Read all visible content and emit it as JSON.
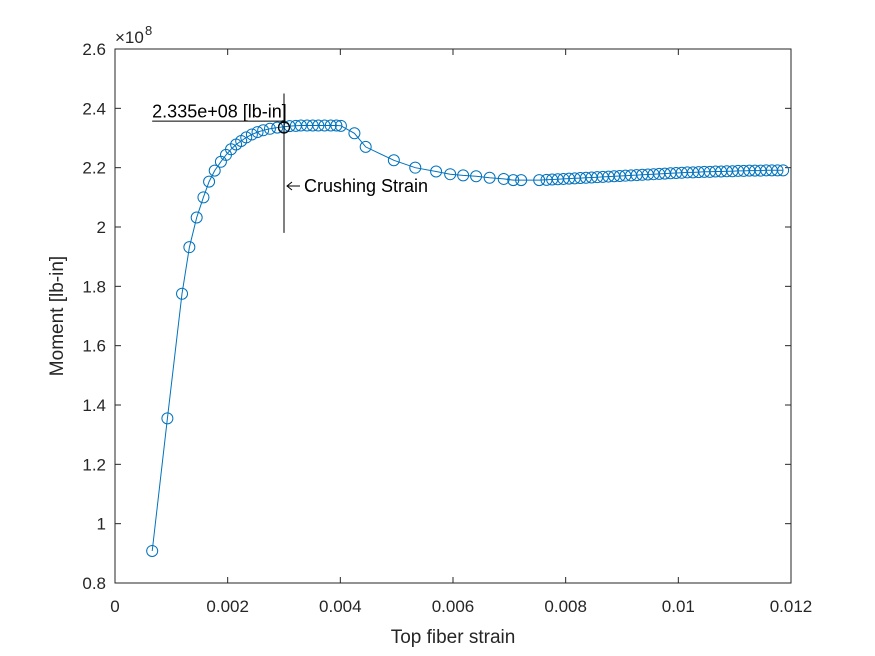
{
  "chart_data": {
    "type": "line",
    "xlabel": "Top fiber strain",
    "ylabel": "Moment [lb-in]",
    "xlim": [
      0,
      0.012
    ],
    "ylim": [
      0.8,
      2.6
    ],
    "y_exponent_label": "×10",
    "y_exponent": "8",
    "x_ticks": [
      0,
      0.002,
      0.004,
      0.006,
      0.008,
      0.01,
      0.012
    ],
    "x_tick_labels": [
      "0",
      "0.002",
      "0.004",
      "0.006",
      "0.008",
      "0.01",
      "0.012"
    ],
    "y_ticks": [
      0.8,
      1.0,
      1.2,
      1.4,
      1.6,
      1.8,
      2.0,
      2.2,
      2.4,
      2.6
    ],
    "y_tick_labels": [
      "0.8",
      "1",
      "1.2",
      "1.4",
      "1.6",
      "1.8",
      "2",
      "2.2",
      "2.4",
      "2.6"
    ],
    "grid": false,
    "series": [
      {
        "marker": "circle",
        "color": "#0072BD",
        "x": [
          0.00066,
          0.00093,
          0.00119,
          0.00132,
          0.00145,
          0.00157,
          0.00167,
          0.00177,
          0.00188,
          0.00197,
          0.00206,
          0.00215,
          0.00224,
          0.00233,
          0.00243,
          0.00253,
          0.00263,
          0.00275,
          0.00288,
          0.003,
          0.0031,
          0.00321,
          0.0033,
          0.00341,
          0.00351,
          0.00361,
          0.00372,
          0.00383,
          0.00393,
          0.00401,
          0.00425,
          0.00445,
          0.00495,
          0.00533,
          0.0057,
          0.00595,
          0.00618,
          0.00641,
          0.00665,
          0.0069,
          0.00707,
          0.00721,
          0.00753,
          0.00766,
          0.00776,
          0.00786,
          0.00796,
          0.00806,
          0.00816,
          0.00826,
          0.00836,
          0.00846,
          0.00856,
          0.00866,
          0.00876,
          0.00886,
          0.00896,
          0.00906,
          0.00916,
          0.00926,
          0.00936,
          0.00946,
          0.00956,
          0.00966,
          0.00976,
          0.00986,
          0.00996,
          0.01006,
          0.01016,
          0.01026,
          0.01036,
          0.01046,
          0.01056,
          0.01066,
          0.01076,
          0.01086,
          0.01096,
          0.01106,
          0.01116,
          0.01126,
          0.01136,
          0.01146,
          0.01156,
          0.01166,
          0.01176,
          0.01186
        ],
        "y": [
          0.908,
          1.355,
          1.775,
          1.932,
          2.032,
          2.1,
          2.153,
          2.19,
          2.22,
          2.243,
          2.262,
          2.278,
          2.29,
          2.302,
          2.312,
          2.32,
          2.326,
          2.331,
          2.335,
          2.338,
          2.34,
          2.341,
          2.342,
          2.342,
          2.342,
          2.342,
          2.342,
          2.342,
          2.342,
          2.341,
          2.316,
          2.27,
          2.225,
          2.2,
          2.187,
          2.178,
          2.174,
          2.171,
          2.166,
          2.162,
          2.158,
          2.158,
          2.158,
          2.159,
          2.16,
          2.161,
          2.162,
          2.163,
          2.164,
          2.165,
          2.166,
          2.167,
          2.168,
          2.169,
          2.17,
          2.171,
          2.172,
          2.173,
          2.174,
          2.175,
          2.176,
          2.177,
          2.178,
          2.179,
          2.18,
          2.181,
          2.182,
          2.183,
          2.184,
          2.184,
          2.185,
          2.186,
          2.186,
          2.187,
          2.187,
          2.188,
          2.188,
          2.189,
          2.189,
          2.19,
          2.19,
          2.19,
          2.191,
          2.191,
          2.191,
          2.191
        ]
      }
    ],
    "annotations": {
      "peak_label": "2.335e+08 [lb-in]",
      "peak_point": {
        "x": 0.003,
        "y": 2.335
      },
      "peak_hline_x_start": 0.00066,
      "crushing_label": "Crushing Strain",
      "crushing_vline_x": 0.003,
      "crushing_vline_y": [
        1.98,
        2.45
      ]
    }
  }
}
